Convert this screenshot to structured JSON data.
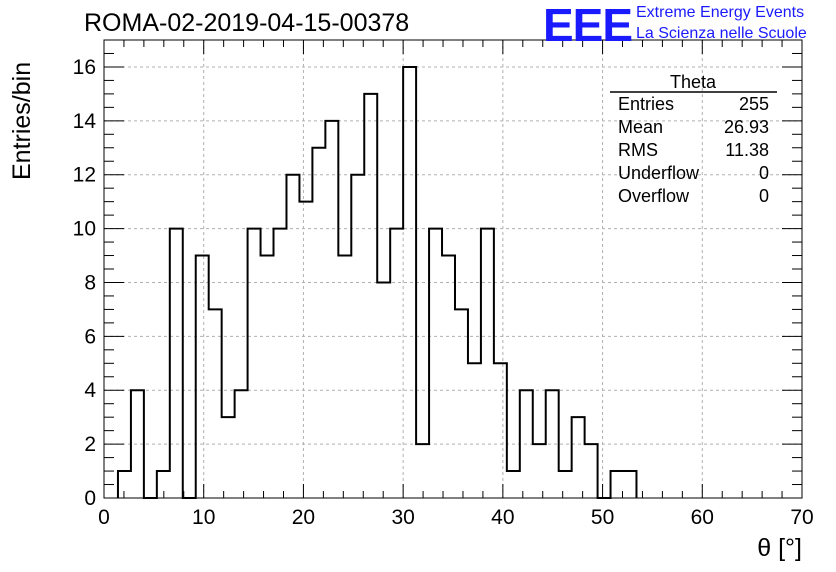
{
  "title": "ROMA-02-2019-04-15-00378",
  "logo": {
    "text": "EEE",
    "line1": "Extreme Energy Events",
    "line2": "La Scienza nelle Scuole",
    "color": "#1a1aff"
  },
  "chart_data": {
    "type": "bar",
    "histogram": true,
    "xlabel": "θ [°]",
    "ylabel": "Entries/bin",
    "xlim": [
      0,
      70
    ],
    "ylim": [
      0,
      17
    ],
    "grid": true,
    "x_ticks": [
      0,
      10,
      20,
      30,
      40,
      50,
      60,
      70
    ],
    "y_ticks": [
      0,
      2,
      4,
      6,
      8,
      10,
      12,
      14,
      16
    ],
    "bin_width": 1.3,
    "bin_start": 1.4,
    "values": [
      1,
      4,
      0,
      1,
      10,
      0,
      9,
      7,
      3,
      4,
      10,
      9,
      10,
      12,
      11,
      13,
      14,
      9,
      12,
      15,
      8,
      10,
      16,
      2,
      10,
      9,
      7,
      5,
      10,
      5,
      1,
      4,
      2,
      4,
      1,
      3,
      2,
      0,
      1,
      1
    ],
    "stats_box": {
      "title": "Theta",
      "position": "top-right",
      "rows": [
        {
          "label": "Entries",
          "value": "255"
        },
        {
          "label": "Mean",
          "value": "26.93"
        },
        {
          "label": "RMS",
          "value": "11.38"
        },
        {
          "label": "Underflow",
          "value": "0"
        },
        {
          "label": "Overflow",
          "value": "0"
        }
      ]
    }
  }
}
